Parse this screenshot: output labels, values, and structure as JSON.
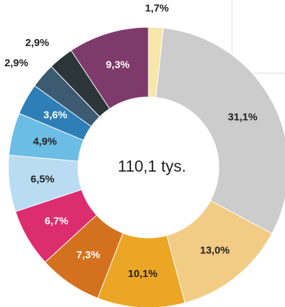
{
  "chart_data": {
    "type": "donut",
    "center_label": "110,1 tys.",
    "values": [
      1.7,
      31.1,
      13.0,
      10.1,
      7.3,
      6.7,
      6.5,
      4.9,
      3.6,
      2.9,
      2.9,
      9.3
    ],
    "value_labels": [
      "1,7%",
      "31,1%",
      "13,0%",
      "10,1%",
      "7,3%",
      "6,7%",
      "6,5%",
      "4,9%",
      "3,6%",
      "2,9%",
      "2,9%",
      "9,3%"
    ],
    "colors": [
      "#f7e7a8",
      "#cccccc",
      "#f2cc85",
      "#eca625",
      "#d4711f",
      "#dc2d6f",
      "#b9dcf2",
      "#6cbde6",
      "#2e7fb7",
      "#3d5a73",
      "#2c3538",
      "#7e3a6a"
    ]
  }
}
